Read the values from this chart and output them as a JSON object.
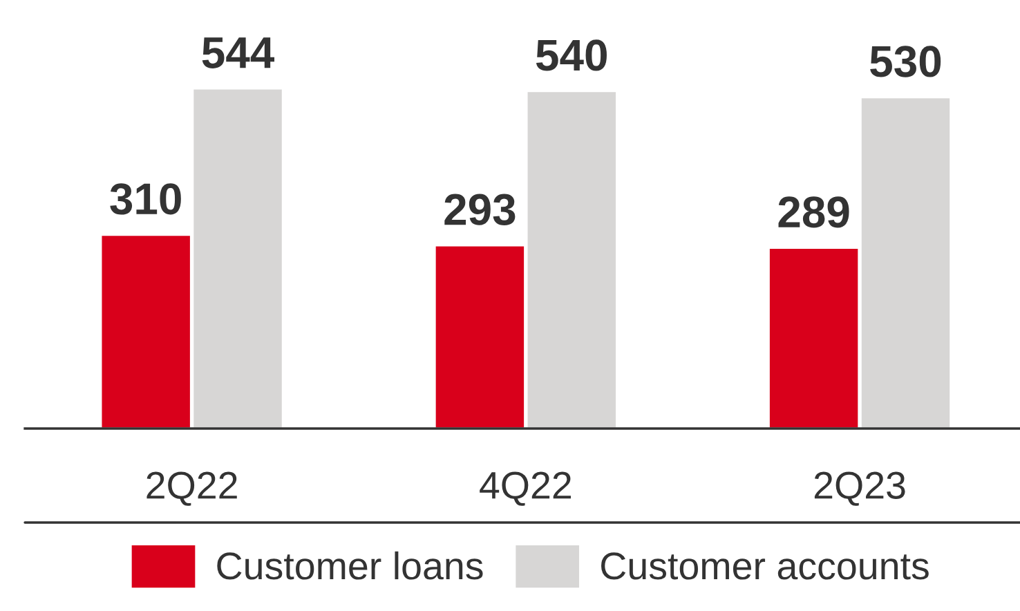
{
  "chart_data": {
    "type": "bar",
    "categories": [
      "2Q22",
      "4Q22",
      "2Q23"
    ],
    "series": [
      {
        "name": "Customer loans",
        "color": "#d9001b",
        "values": [
          310,
          293,
          289
        ]
      },
      {
        "name": "Customer accounts",
        "color": "#d7d6d5",
        "values": [
          544,
          540,
          530
        ]
      }
    ],
    "data_labels": true,
    "legend": "bottom",
    "grid": false
  }
}
